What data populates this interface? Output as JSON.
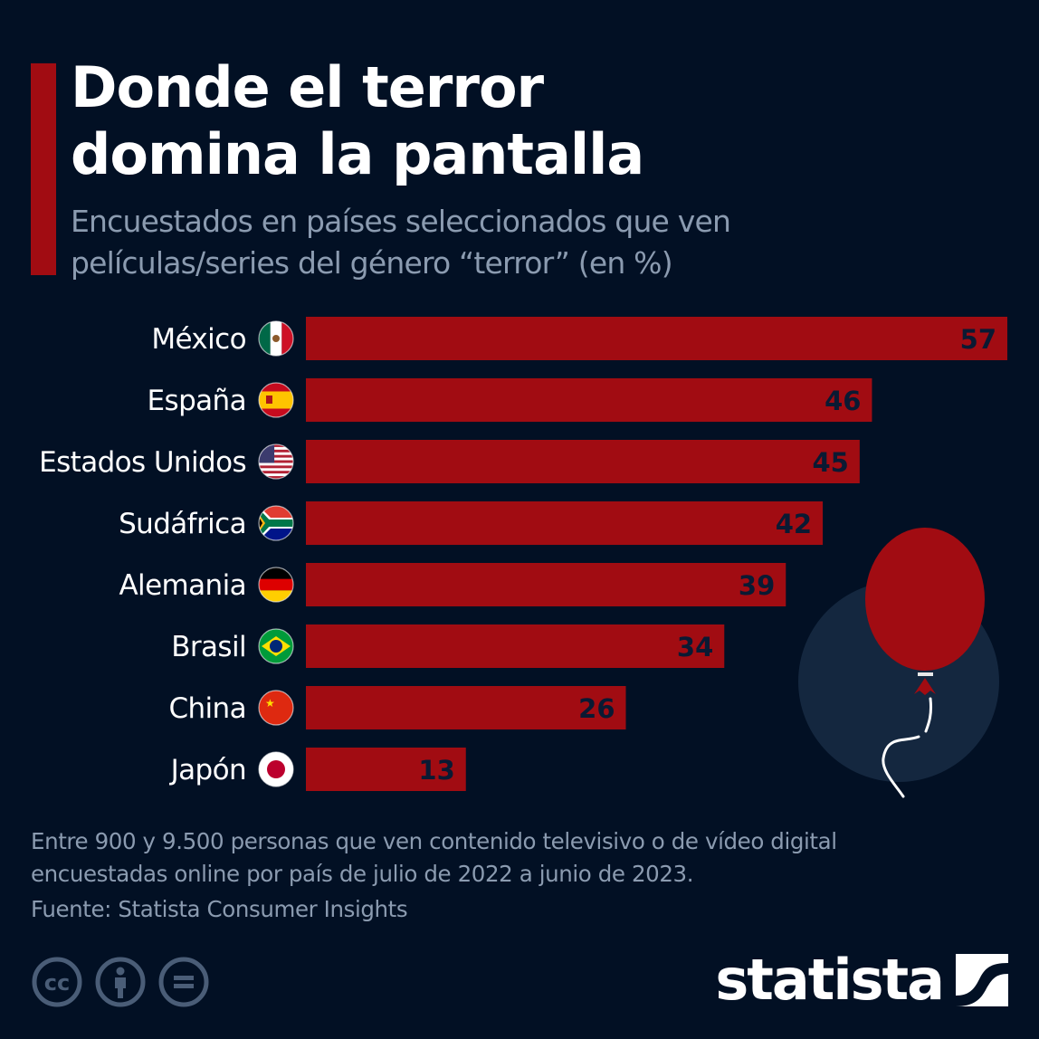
{
  "header": {
    "title": "Donde el terror\ndomina la pantalla",
    "subtitle": "Encuestados en países seleccionados que ven\npelículas/series del género “terror” (en %)"
  },
  "colors": {
    "background": "#021024",
    "bar": "#a10c12",
    "accent": "#a10c12",
    "value_label": "#0a1a33",
    "muted_text": "#8b9bb0",
    "balloon": "#a10c12",
    "balloon_backdrop": "#14273f"
  },
  "chart_data": {
    "type": "bar",
    "orientation": "horizontal",
    "title": "Donde el terror domina la pantalla",
    "subtitle": "Encuestados en países seleccionados que ven películas/series del género “terror” (en %)",
    "xlabel": "",
    "ylabel": "",
    "unit": "%",
    "xlim": [
      0,
      57
    ],
    "grid": false,
    "legend": "none",
    "categories": [
      "México",
      "España",
      "Estados Unidos",
      "Sudáfrica",
      "Alemania",
      "Brasil",
      "China",
      "Japón"
    ],
    "flags": [
      "mexico-flag",
      "spain-flag",
      "usa-flag",
      "south-africa-flag",
      "germany-flag",
      "brazil-flag",
      "china-flag",
      "japan-flag"
    ],
    "values": [
      57,
      46,
      45,
      42,
      39,
      34,
      26,
      13
    ],
    "value_labels": [
      "57",
      "46",
      "45",
      "42",
      "39",
      "34",
      "26",
      "13"
    ]
  },
  "footer": {
    "note": "Entre 900 y 9.500 personas que ven contenido televisivo o de vídeo digital\nencuestadas online por país de julio de 2022 a junio de 2023.",
    "source": "Fuente: Statista Consumer Insights",
    "license_icons": [
      "cc-icon",
      "attribution-icon",
      "no-derivatives-icon"
    ],
    "logo": "statista"
  }
}
